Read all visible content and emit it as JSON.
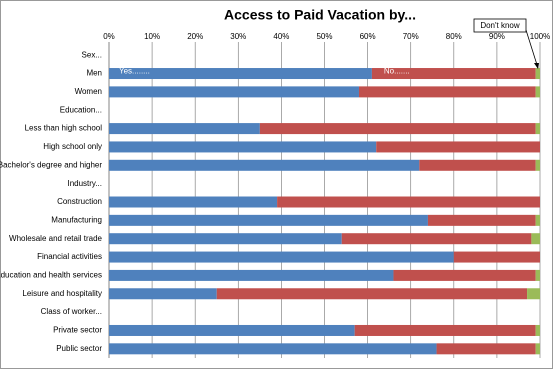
{
  "chart_data": {
    "type": "stacked-barh",
    "title": "Access to Paid Vacation by...",
    "categories": [
      "Sex...",
      "Men",
      "Women",
      "Education...",
      "Less than high school",
      "High school only",
      "Bachelor's degree and higher",
      "Industry...",
      "Construction",
      "Manufacturing",
      "Wholesale and retail trade",
      "Financial activities",
      "Education and health services",
      "Leisure and hospitality",
      "Class of worker...",
      "Private sector",
      "Public sector"
    ],
    "series": [
      {
        "name": "Yes........",
        "color": "#4f81bd",
        "values": [
          null,
          61,
          58,
          null,
          35,
          62,
          72,
          null,
          39,
          74,
          54,
          80,
          66,
          25,
          null,
          57,
          76
        ]
      },
      {
        "name": "No.......",
        "color": "#c0504d",
        "values": [
          null,
          38,
          41,
          null,
          64,
          38,
          27,
          null,
          61,
          25,
          44,
          20,
          33,
          72,
          null,
          42,
          23
        ]
      },
      {
        "name": "Don't know",
        "color": "#9bbb59",
        "values": [
          null,
          1,
          1,
          null,
          1,
          0,
          1,
          null,
          0,
          1,
          2,
          0,
          1,
          3,
          null,
          1,
          1
        ]
      }
    ],
    "xlim": [
      0,
      100
    ],
    "xticks": [
      {
        "value": 0,
        "label": "0%"
      },
      {
        "value": 10,
        "label": "10%"
      },
      {
        "value": 20,
        "label": "20%"
      },
      {
        "value": 30,
        "label": "30%"
      },
      {
        "value": 40,
        "label": "40%"
      },
      {
        "value": 50,
        "label": "50%"
      },
      {
        "value": 60,
        "label": "60%"
      },
      {
        "value": 70,
        "label": "70%"
      },
      {
        "value": 80,
        "label": "80%"
      },
      {
        "value": 90,
        "label": "90%"
      },
      {
        "value": 100,
        "label": "100%"
      }
    ],
    "grid": true
  }
}
